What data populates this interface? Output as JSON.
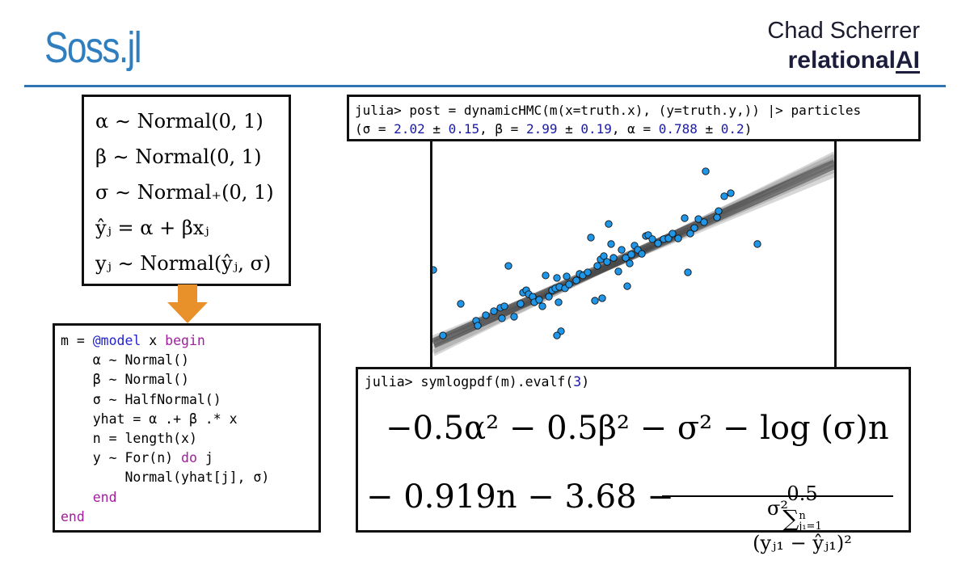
{
  "header": {
    "title": "Soss.jl",
    "author": "Chad Scherrer",
    "company": [
      "relational",
      "AI"
    ]
  },
  "model_math": [
    "α ∼ Normal(0, 1)",
    "β ∼ Normal(0, 1)",
    "σ ∼ Normal₊(0, 1)",
    "ŷⱼ = α + βxⱼ",
    "yⱼ ∼ Normal(ŷⱼ, σ)"
  ],
  "code": [
    [
      {
        "text": "m = ",
        "color": "#000000"
      },
      {
        "text": "@model",
        "color": "#2424c8"
      },
      {
        "text": " x ",
        "color": "#000000"
      },
      {
        "text": "begin",
        "color": "#a0209c"
      }
    ],
    [
      {
        "text": "    α ~ Normal()",
        "color": "#000000"
      }
    ],
    [
      {
        "text": "    β ~ Normal()",
        "color": "#000000"
      }
    ],
    [
      {
        "text": "    σ ~ HalfNormal()",
        "color": "#000000"
      }
    ],
    [
      {
        "text": "    yhat = α .+ β .* x",
        "color": "#000000"
      }
    ],
    [
      {
        "text": "    n = length(x)",
        "color": "#000000"
      }
    ],
    [
      {
        "text": "    y ~ For(n) ",
        "color": "#000000"
      },
      {
        "text": "do",
        "color": "#a0209c"
      },
      {
        "text": " j",
        "color": "#000000"
      }
    ],
    [
      {
        "text": "        Normal(yhat[j], σ)",
        "color": "#000000"
      }
    ],
    [
      {
        "text": "    ",
        "color": "#000000"
      },
      {
        "text": "end",
        "color": "#a0209c"
      }
    ],
    [
      {
        "text": "end",
        "color": "#a0209c"
      }
    ]
  ],
  "repl_top": [
    [
      {
        "text": "julia> post = dynamicHMC(m(x=truth.x), (y=truth.y,)) |> particles",
        "color": "#000000"
      }
    ],
    [
      {
        "text": "(σ = ",
        "color": "#000000"
      },
      {
        "text": "2.02",
        "color": "#1a1aa6"
      },
      {
        "text": " ± ",
        "color": "#000000"
      },
      {
        "text": "0.15",
        "color": "#1a1aa6"
      },
      {
        "text": ", β = ",
        "color": "#000000"
      },
      {
        "text": "2.99",
        "color": "#1a1aa6"
      },
      {
        "text": " ± ",
        "color": "#000000"
      },
      {
        "text": "0.19",
        "color": "#1a1aa6"
      },
      {
        "text": ", α = ",
        "color": "#000000"
      },
      {
        "text": "0.788",
        "color": "#1a1aa6"
      },
      {
        "text": " ± ",
        "color": "#000000"
      },
      {
        "text": "0.2",
        "color": "#1a1aa6"
      },
      {
        "text": ")",
        "color": "#000000"
      }
    ]
  ],
  "repl_bottom": {
    "prompt": [
      {
        "text": "julia> symlogpdf(m).evalf(",
        "color": "#000000"
      },
      {
        "text": "3",
        "color": "#1a1aa6"
      },
      {
        "text": ")",
        "color": "#000000"
      }
    ],
    "line1": "−0.5α² − 0.5β² − σ² − log (σ)n",
    "line2": "− 0.919n − 3.68 −",
    "numerator": {
      "coef": "0.5",
      "sum": "∑",
      "upper": "n",
      "lower": "j₁=1",
      "body": "(yⱼ₁ − ŷⱼ₁)²"
    },
    "denominator": "σ²"
  },
  "chart_data": {
    "type": "scatter",
    "color": "#1f96e8",
    "xlim": [
      0,
      100
    ],
    "ylim": [
      0,
      100
    ],
    "x": [
      0.8,
      7.6,
      3.2,
      11.4,
      11.8,
      13.8,
      15.8,
      17.4,
      17.8,
      18.4,
      19.4,
      20.8,
      22.4,
      23.0,
      23.8,
      24.4,
      25.4,
      25.8,
      27.0,
      27.8,
      28.6,
      29.4,
      30.2,
      31.0,
      31.4,
      31.8,
      32.0,
      32.4,
      31.4,
      33.4,
      33.8,
      34.4,
      36.2,
      37.0,
      37.8,
      39.0,
      39.8,
      40.8,
      41.4,
      42.2,
      42.6,
      43.0,
      43.8,
      44.2,
      44.8,
      45.4,
      46.6,
      47.4,
      48.4,
      48.8,
      49.4,
      49.8,
      50.6,
      51.4,
      52.4,
      53.4,
      54.0,
      55.0,
      56.4,
      57.8,
      59.0,
      60.0,
      61.4,
      63.0,
      63.8,
      64.4,
      65.4,
      66.4,
      67.8,
      68.2,
      71.0,
      71.4,
      72.8,
      74.4,
      81.0
    ],
    "y": [
      42.4,
      27.2,
      13.0,
      19.6,
      17.4,
      22.1,
      23.9,
      25.4,
      20.7,
      26.1,
      44.2,
      21.4,
      27.2,
      32.2,
      33.3,
      31.5,
      30.4,
      27.9,
      29.0,
      26.1,
      39.9,
      30.4,
      33.3,
      34.1,
      38.8,
      27.9,
      34.8,
      14.9,
      13.0,
      34.1,
      39.5,
      35.9,
      37.7,
      40.6,
      39.9,
      41.3,
      56.9,
      28.6,
      44.2,
      47.1,
      29.7,
      48.6,
      46.0,
      63.0,
      54.0,
      47.8,
      41.7,
      51.4,
      47.8,
      35.1,
      45.3,
      49.3,
      53.3,
      51.4,
      49.6,
      57.6,
      58.0,
      56.2,
      54.3,
      56.2,
      56.5,
      58.7,
      56.5,
      65.6,
      41.3,
      58.7,
      61.2,
      65.2,
      63.8,
      86.6,
      65.9,
      68.8,
      75.4,
      76.8,
      54.0
    ]
  }
}
